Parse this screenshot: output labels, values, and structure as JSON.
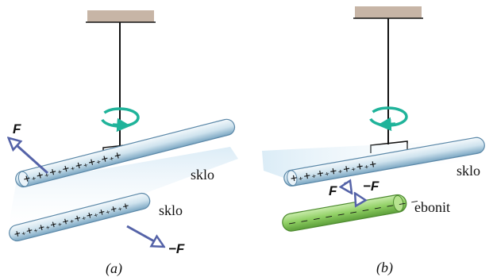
{
  "colors": {
    "ceiling": "#c7b5a6",
    "glass_rod": "#cfe3ee",
    "ebonite_rod": "#8fcf63",
    "rotation_arrow": "#1fb39a",
    "force_arrow": "#5563a8"
  },
  "panel_a": {
    "caption": "(a)",
    "upper_rod_label": "sklo",
    "lower_rod_label": "sklo",
    "upper_charges": "+₊+₊+₊+₊+₊+₊+₊+",
    "lower_charges": "+₊+₊+₊+₊+₊+₊+₊+₊+₊+",
    "force_upper": "F",
    "force_lower": "−F"
  },
  "panel_b": {
    "caption": "(b)",
    "upper_rod_label": "sklo",
    "lower_rod_label": "ebonit",
    "upper_charges": "+₊+₊+₊+₊+₊+₊+",
    "lower_charges": "– – – – – – – – – – –",
    "force_upper": "F",
    "force_lower": "−F"
  },
  "icons": [
    "rotation-arrow-icon",
    "force-arrow-icon"
  ]
}
